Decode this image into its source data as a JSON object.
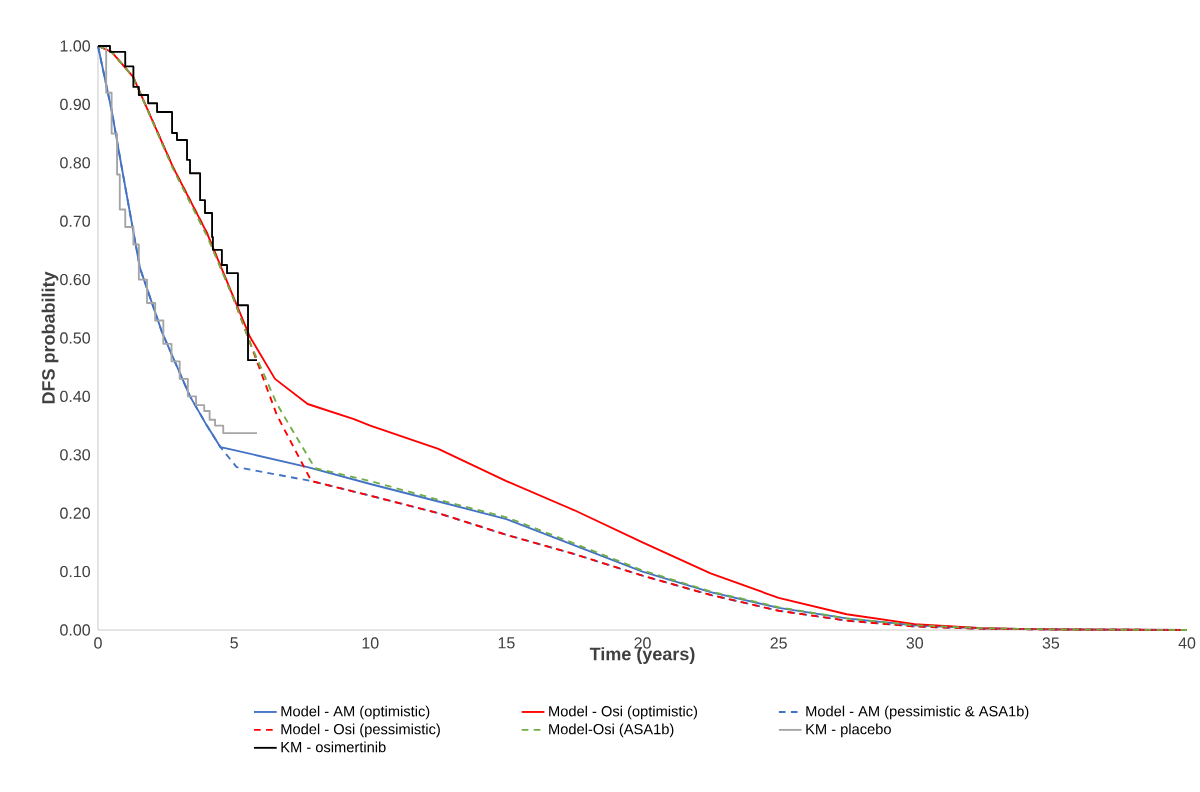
{
  "chart_data": {
    "type": "line",
    "xlabel": "Time (years)",
    "ylabel": "DFS probability",
    "xlim": [
      0,
      40
    ],
    "ylim": [
      0,
      1
    ],
    "xticks": [
      0,
      5,
      10,
      15,
      20,
      25,
      30,
      35,
      40
    ],
    "yticks": [
      {
        "value": 0,
        "label": "0.00"
      },
      {
        "value": 0.1,
        "label": "0.10"
      },
      {
        "value": 0.2,
        "label": "0.20"
      },
      {
        "value": 0.3,
        "label": "0.30"
      },
      {
        "value": 0.4,
        "label": "0.40"
      },
      {
        "value": 0.5,
        "label": "0.50"
      },
      {
        "value": 0.6,
        "label": "0.60"
      },
      {
        "value": 0.7,
        "label": "0.70"
      },
      {
        "value": 0.8,
        "label": "0.80"
      },
      {
        "value": 0.9,
        "label": "0.90"
      },
      {
        "value": 1,
        "label": "1.00"
      }
    ],
    "legend": "bottom",
    "series": [
      {
        "name": "Model - AM (optimistic)",
        "color": "#4472c4",
        "line_style": "solid",
        "x": [
          0,
          0.5,
          0.88,
          1.54,
          2.35,
          3.38,
          4.0,
          4.5,
          5.0,
          7.7,
          10,
          12.5,
          15,
          17.5,
          20,
          22.5,
          25,
          27.5,
          30,
          32.5,
          35,
          40
        ],
        "values": [
          1,
          0.89,
          0.79,
          0.62,
          0.51,
          0.4,
          0.35,
          0.313,
          0.308,
          0.279,
          0.25,
          0.22,
          0.19,
          0.145,
          0.1,
          0.065,
          0.038,
          0.02,
          0.008,
          0.003,
          0.001,
          0
        ]
      },
      {
        "name": "Model - Osi  (optimistic)",
        "color": "#ff0000",
        "line_style": "solid",
        "x": [
          0,
          0.5,
          1.29,
          2.75,
          4.0,
          5.58,
          6.5,
          7.7,
          9.4,
          10,
          12.5,
          15,
          17.5,
          20,
          22.5,
          25,
          27.5,
          30,
          32.5,
          35,
          40
        ],
        "values": [
          1,
          0.99,
          0.947,
          0.793,
          0.68,
          0.502,
          0.43,
          0.387,
          0.361,
          0.35,
          0.31,
          0.255,
          0.205,
          0.15,
          0.097,
          0.055,
          0.027,
          0.01,
          0.003,
          0.001,
          0
        ]
      },
      {
        "name": "Model - AM (pessimistic & ASA1b)",
        "color": "#4472c4",
        "line_style": "dashed",
        "x": [
          0,
          0.5,
          0.88,
          1.54,
          2.35,
          3.38,
          4.0,
          4.5,
          5.09,
          7.84,
          10,
          12.5,
          15,
          17.5,
          20,
          22.5,
          25,
          27.5,
          30,
          32.5,
          35,
          40
        ],
        "values": [
          1,
          0.89,
          0.79,
          0.62,
          0.51,
          0.4,
          0.35,
          0.313,
          0.279,
          0.255,
          0.23,
          0.2,
          0.163,
          0.13,
          0.093,
          0.06,
          0.033,
          0.016,
          0.006,
          0.002,
          0.001,
          0
        ]
      },
      {
        "name": "Model - Osi (pessimistic)",
        "color": "#ff0000",
        "line_style": "dashed",
        "x": [
          0,
          0.5,
          1.29,
          2.75,
          4.0,
          5.0,
          5.6,
          6.57,
          7.84,
          10,
          12.5,
          15,
          17.5,
          20,
          22.5,
          25,
          27.5,
          30,
          32.5,
          35,
          40
        ],
        "values": [
          1,
          0.99,
          0.947,
          0.793,
          0.68,
          0.565,
          0.49,
          0.368,
          0.255,
          0.23,
          0.2,
          0.163,
          0.13,
          0.093,
          0.06,
          0.033,
          0.016,
          0.006,
          0.002,
          0.001,
          0
        ]
      },
      {
        "name": "Model-Osi (ASA1b)",
        "color": "#70ad47",
        "line_style": "dashed",
        "x": [
          0,
          0.5,
          1.29,
          2.75,
          4.0,
          5.0,
          5.6,
          6.57,
          7.97,
          10,
          12.5,
          15,
          17.5,
          20,
          22.5,
          25,
          27.5,
          30,
          32.5,
          35,
          40
        ],
        "values": [
          1,
          0.99,
          0.947,
          0.79,
          0.675,
          0.565,
          0.49,
          0.387,
          0.277,
          0.255,
          0.223,
          0.193,
          0.148,
          0.102,
          0.066,
          0.039,
          0.02,
          0.008,
          0.003,
          0.001,
          0
        ]
      },
      {
        "name": "KM - placebo",
        "type": "step",
        "color": "#a5a5a5",
        "line_style": "solid",
        "x": [
          0,
          0.3,
          0.5,
          0.7,
          0.8,
          1.0,
          1.3,
          1.5,
          1.8,
          2.1,
          2.4,
          2.7,
          3.0,
          3.3,
          3.6,
          3.9,
          4.1,
          4.3,
          4.6,
          5.84
        ],
        "values": [
          1,
          0.92,
          0.85,
          0.78,
          0.72,
          0.69,
          0.66,
          0.6,
          0.56,
          0.53,
          0.49,
          0.46,
          0.43,
          0.4,
          0.385,
          0.375,
          0.36,
          0.35,
          0.337,
          0.337
        ]
      },
      {
        "name": "KM - osimertinib",
        "type": "step",
        "color": "#000000",
        "line_style": "solid",
        "x": [
          0,
          0.44,
          1.0,
          1.3,
          1.5,
          1.84,
          2.17,
          2.72,
          2.9,
          3.27,
          3.38,
          3.75,
          3.93,
          4.19,
          4.22,
          4.55,
          4.74,
          5.14,
          5.51,
          5.84
        ],
        "values": [
          1,
          0.99,
          0.965,
          0.93,
          0.916,
          0.902,
          0.887,
          0.851,
          0.839,
          0.805,
          0.782,
          0.736,
          0.714,
          0.673,
          0.651,
          0.625,
          0.611,
          0.556,
          0.462,
          0.462
        ]
      }
    ]
  }
}
